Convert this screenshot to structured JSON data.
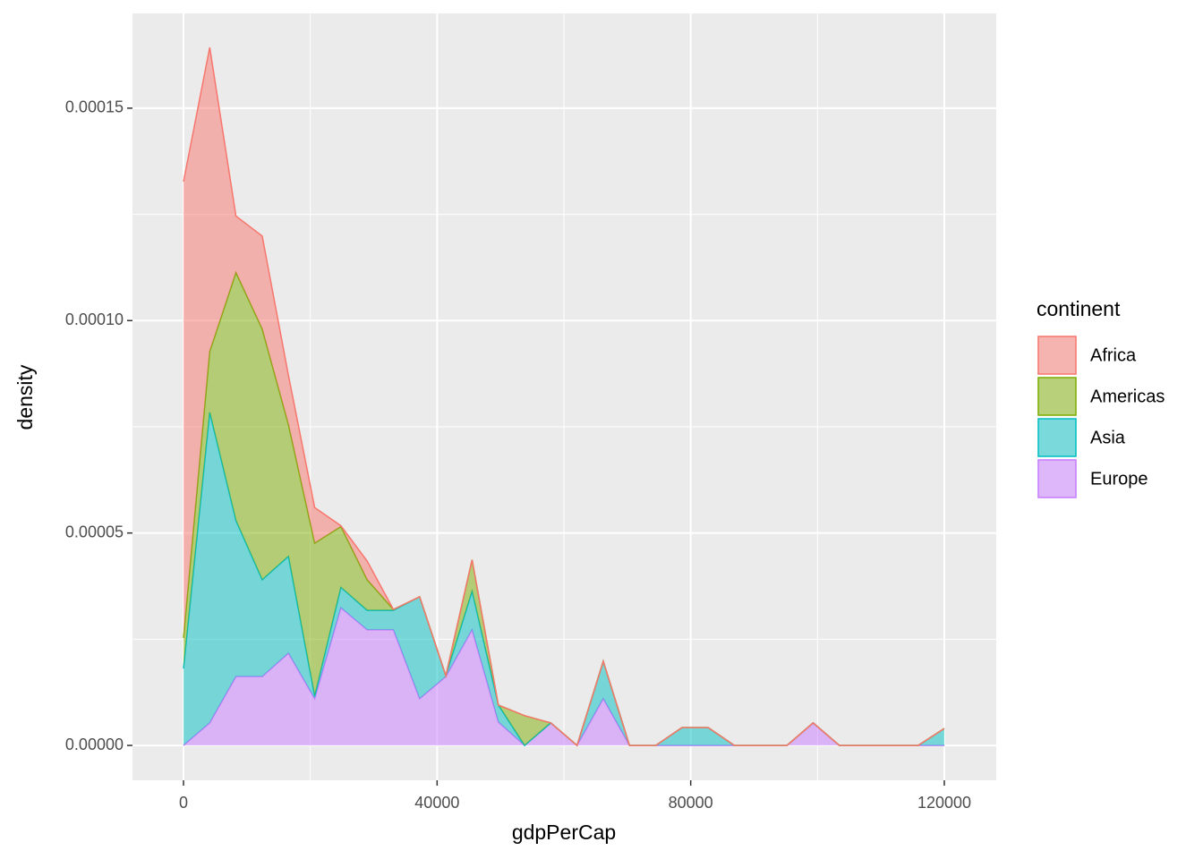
{
  "chart_data": {
    "type": "stacked-area",
    "x_label": "gdpPerCap",
    "y_label": "density",
    "legend_title": "continent",
    "x": [
      0,
      4138,
      8276,
      12414,
      16552,
      20690,
      24828,
      28966,
      33104,
      37242,
      41380,
      45518,
      49656,
      53794,
      57932,
      62070,
      66208,
      70346,
      74484,
      78622,
      82760,
      86898,
      91036,
      95174,
      99312,
      103450,
      107588,
      111726,
      115864,
      120002
    ],
    "series": [
      {
        "name": "Africa",
        "color": "#F8766D",
        "values": [
          0.0001074,
          7.16e-05,
          1.33e-05,
          2.19e-05,
          1.16e-05,
          8.4e-06,
          2e-07,
          4.4e-06,
          0,
          0,
          0,
          0,
          0,
          0,
          0,
          0,
          0,
          0,
          0,
          0,
          0,
          0,
          0,
          0,
          0,
          0,
          0,
          0,
          0,
          0
        ]
      },
      {
        "name": "Americas",
        "color": "#7CAE00",
        "values": [
          7.2e-06,
          1.43e-05,
          5.84e-05,
          5.9e-05,
          3.1e-05,
          3.6e-05,
          1.43e-05,
          7.2e-06,
          2e-07,
          0,
          0,
          7.4e-06,
          0,
          7e-06,
          0,
          0,
          0,
          0,
          0,
          0,
          0,
          0,
          0,
          0,
          0,
          0,
          0,
          0,
          0,
          0
        ]
      },
      {
        "name": "Asia",
        "color": "#00BFC4",
        "values": [
          1.81e-05,
          7.31e-05,
          3.67e-05,
          2.28e-05,
          2.28e-05,
          6e-07,
          4.8e-06,
          4.6e-06,
          4.6e-06,
          2.4e-05,
          2e-07,
          9.1e-06,
          4e-06,
          0,
          0,
          0,
          8.8e-06,
          0,
          0,
          4.2e-06,
          4.2e-06,
          0,
          0,
          0,
          0,
          0,
          0,
          0,
          0,
          4e-06
        ]
      },
      {
        "name": "Europe",
        "color": "#C77CFF",
        "values": [
          0,
          5.3e-06,
          1.62e-05,
          1.62e-05,
          2.17e-05,
          1.1e-05,
          3.24e-05,
          2.72e-05,
          2.72e-05,
          1.1e-05,
          1.62e-05,
          2.72e-05,
          5.5e-06,
          0,
          5.3e-06,
          0,
          1.1e-05,
          0,
          0,
          0,
          0,
          0,
          0,
          0,
          5.3e-06,
          0,
          0,
          0,
          0,
          0
        ]
      }
    ],
    "xlim": [
      -8047,
      128188
    ],
    "xticks": [
      0,
      40000,
      80000,
      120000
    ],
    "ylim": [
      -8.2e-06,
      0.0001723
    ],
    "yticks": [
      {
        "value": 0,
        "label": "0.00000"
      },
      {
        "value": 5e-05,
        "label": "0.00005"
      },
      {
        "value": 0.0001,
        "label": "0.00010"
      },
      {
        "value": 0.00015,
        "label": "0.00015"
      }
    ],
    "grid": true,
    "fill_opacity": 0.5
  }
}
